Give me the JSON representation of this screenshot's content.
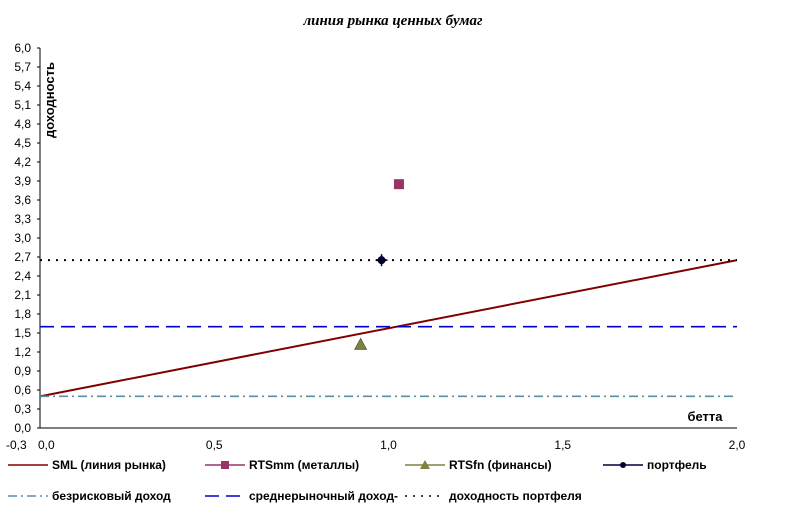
{
  "chart_data": {
    "type": "line",
    "title": "линия рынка ценных бумаг",
    "xlabel": "бетта",
    "ylabel": "доходность",
    "xlim": [
      -0.3,
      2.0
    ],
    "ylim": [
      0,
      6.0
    ],
    "x_ticks": [
      "-0,3",
      "0,0",
      "0,5",
      "1,0",
      "1,5",
      "2,0"
    ],
    "y_ticks": [
      "0,0",
      "0,3",
      "0,6",
      "0,9",
      "1,2",
      "1,5",
      "1,8",
      "2,1",
      "2,4",
      "2,7",
      "3,0",
      "3,3",
      "3,6",
      "3,9",
      "4,2",
      "4,5",
      "4,8",
      "5,1",
      "5,4",
      "5,7",
      "6,0"
    ],
    "grid": false,
    "legend_position": "bottom",
    "series": [
      {
        "name": "SML (линия рынка)",
        "kind": "line",
        "color": "#800000",
        "style": "solid",
        "points": [
          [
            0.0,
            0.5
          ],
          [
            2.0,
            2.65
          ]
        ]
      },
      {
        "name": "RTSmm (металлы)",
        "kind": "marker",
        "marker": "square",
        "color": "#993366",
        "points": [
          [
            1.03,
            3.85
          ]
        ]
      },
      {
        "name": "RTSfn (финансы)",
        "kind": "marker",
        "marker": "triangle",
        "color": "#808040",
        "points": [
          [
            0.92,
            1.32
          ]
        ]
      },
      {
        "name": "портфель",
        "kind": "marker",
        "marker": "star",
        "color": "#000033",
        "points": [
          [
            0.98,
            2.65
          ]
        ]
      },
      {
        "name": "безрисковый доход",
        "kind": "hline",
        "color": "#5b8fa8",
        "style": "dashdot",
        "points": [
          [
            0.0,
            0.5
          ],
          [
            2.0,
            0.5
          ]
        ]
      },
      {
        "name": "среднерыночный доход-",
        "kind": "hline",
        "color": "#0000cc",
        "style": "dashed",
        "points": [
          [
            0.0,
            1.6
          ],
          [
            2.0,
            1.6
          ]
        ]
      },
      {
        "name": "доходность портфеля",
        "kind": "hline",
        "color": "#000000",
        "style": "dotted",
        "points": [
          [
            0.0,
            2.65
          ],
          [
            2.0,
            2.65
          ]
        ]
      }
    ]
  }
}
